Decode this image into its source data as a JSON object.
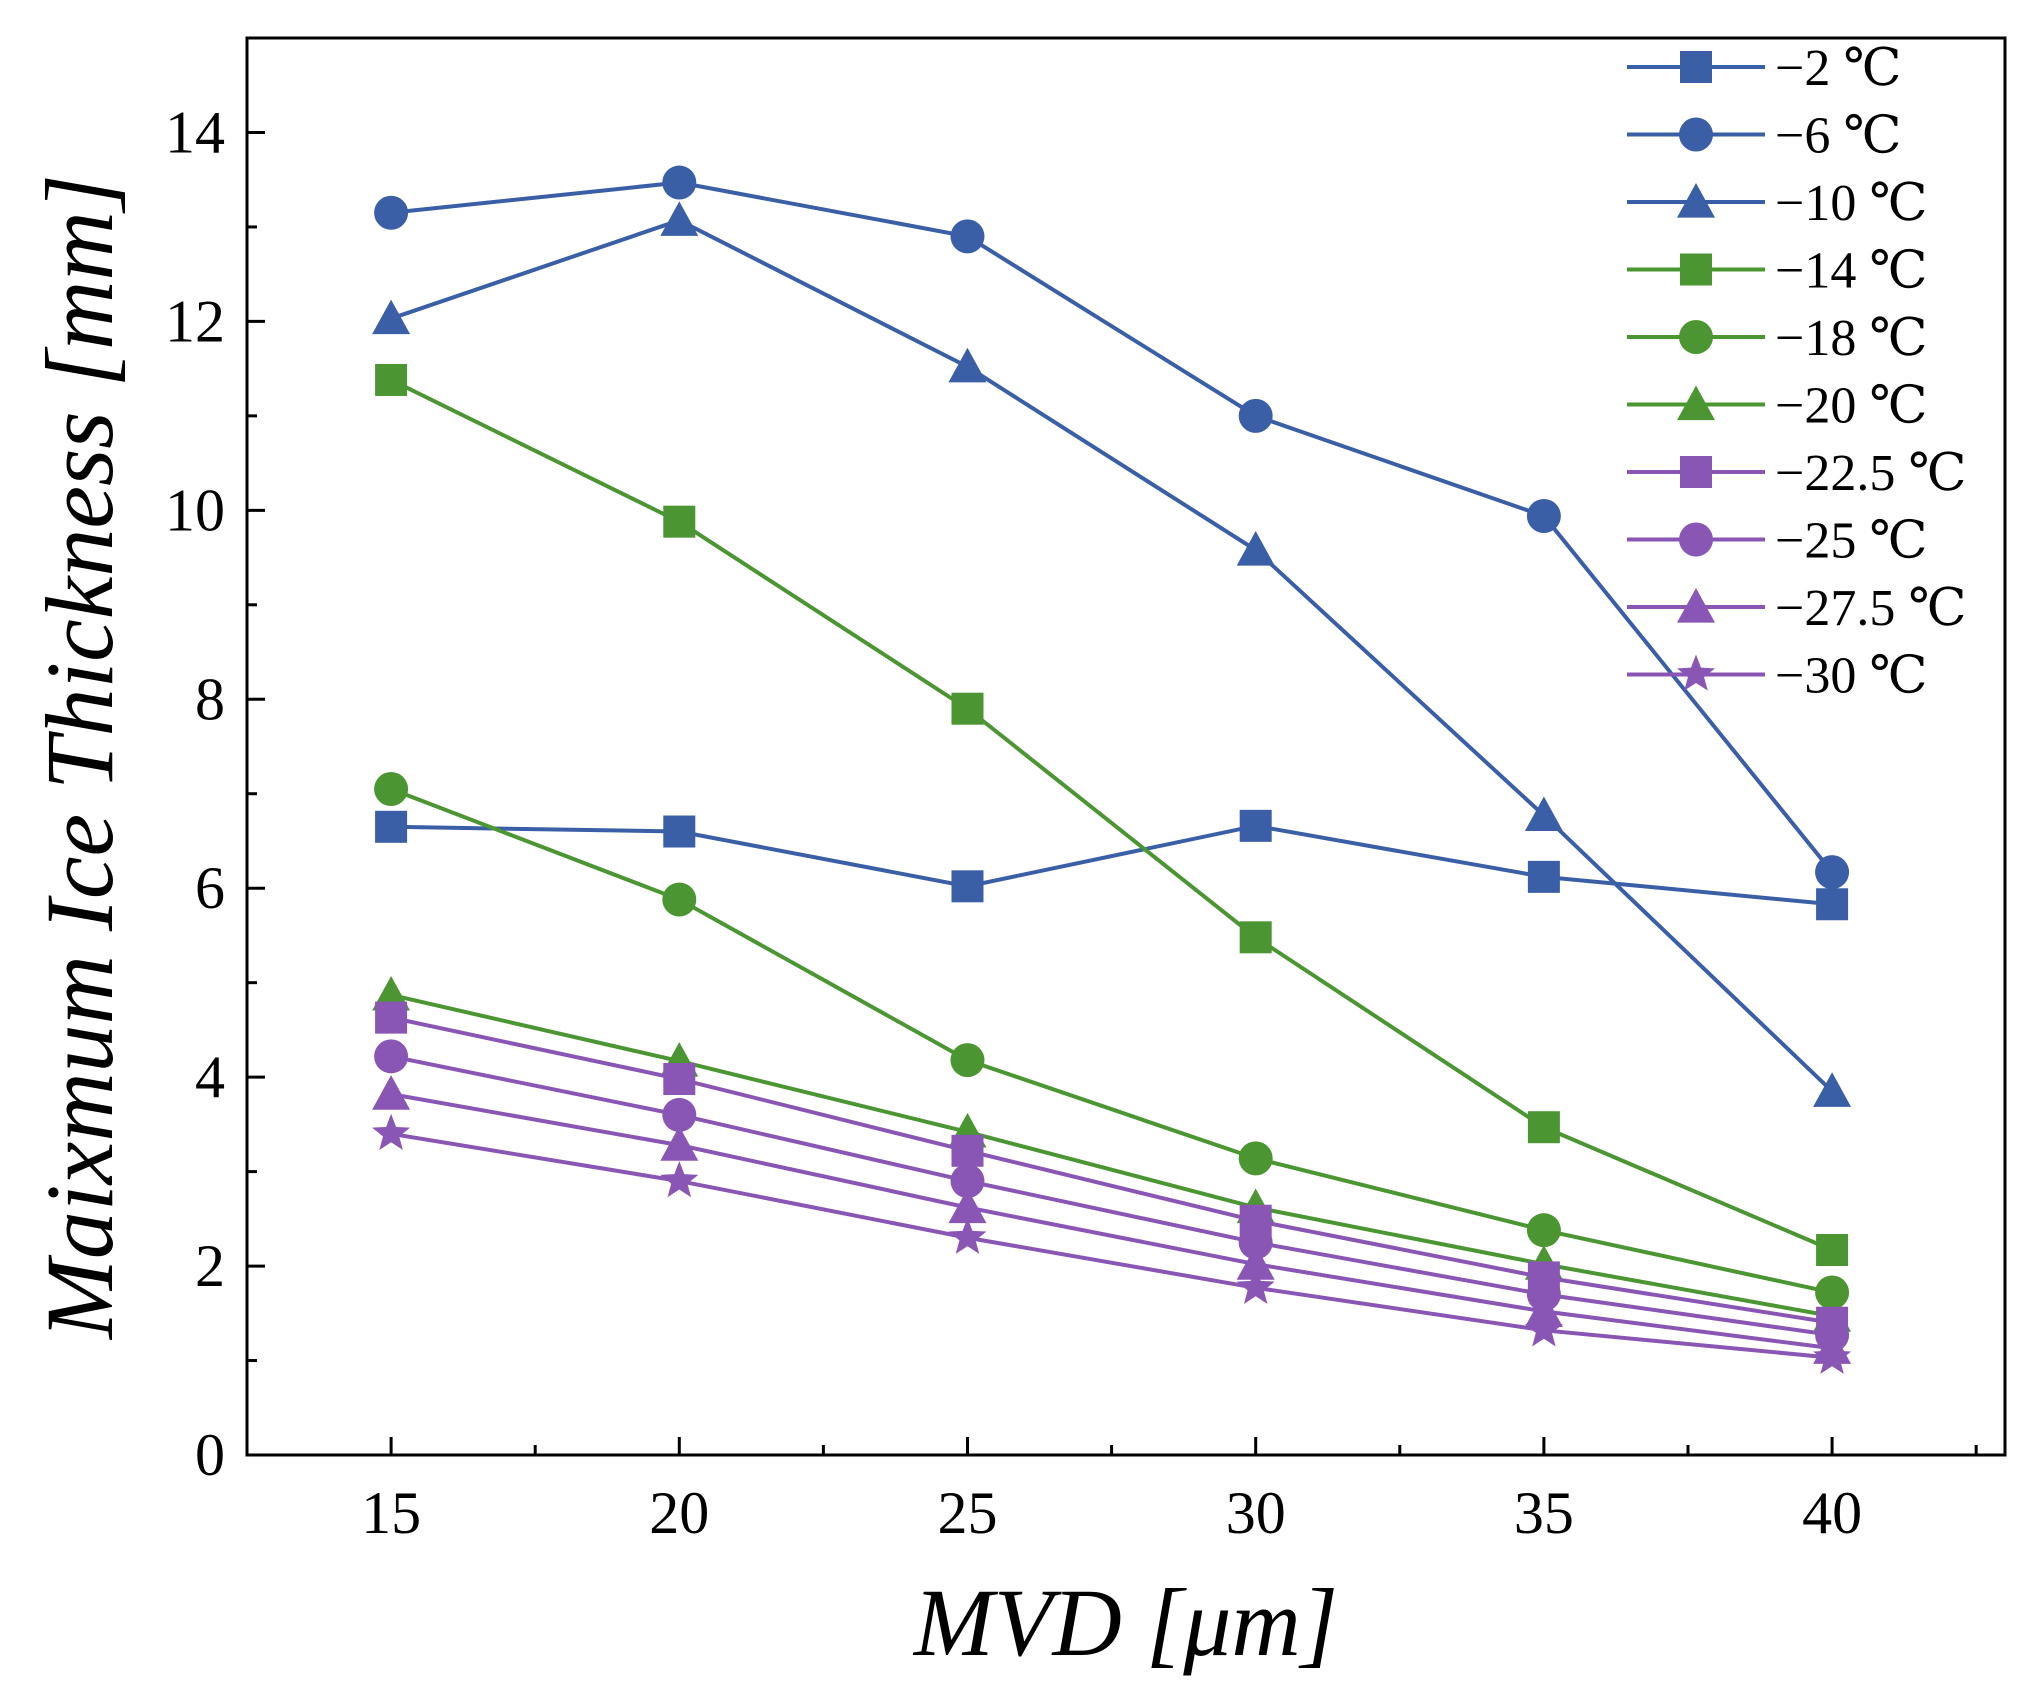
{
  "chart_data": {
    "type": "line",
    "xlabel": "MVD [μm]",
    "ylabel": "Maixmum Ice Thickness [mm]",
    "x": [
      15,
      20,
      25,
      30,
      35,
      40
    ],
    "x_ticks": [
      "15",
      "20",
      "25",
      "30",
      "35",
      "40"
    ],
    "y_ticks": [
      "0",
      "2",
      "4",
      "6",
      "8",
      "10",
      "12",
      "14"
    ],
    "xlim": [
      12.5,
      43
    ],
    "ylim": [
      0,
      15
    ],
    "grid": false,
    "legend_position": "top-right",
    "series": [
      {
        "name": "−2 ℃",
        "color": "#3a5fa6",
        "marker": "square",
        "values": [
          6.65,
          6.6,
          6.02,
          6.66,
          6.12,
          5.83
        ]
      },
      {
        "name": "−6 ℃",
        "color": "#3a5fa6",
        "marker": "circle",
        "values": [
          13.15,
          13.47,
          12.9,
          11.0,
          9.94,
          6.17
        ]
      },
      {
        "name": "−10 ℃",
        "color": "#3a5fa6",
        "marker": "triangle",
        "values": [
          12.03,
          13.07,
          11.52,
          9.58,
          6.77,
          3.85
        ]
      },
      {
        "name": "−14 ℃",
        "color": "#4b9632",
        "marker": "square",
        "values": [
          11.38,
          9.88,
          7.9,
          5.48,
          3.47,
          2.17
        ]
      },
      {
        "name": "−18 ℃",
        "color": "#4b9632",
        "marker": "circle",
        "values": [
          7.05,
          5.88,
          4.18,
          3.14,
          2.38,
          1.72
        ]
      },
      {
        "name": "−20 ℃",
        "color": "#4b9632",
        "marker": "triangle",
        "values": [
          4.87,
          4.17,
          3.42,
          2.62,
          2.02,
          1.47
        ]
      },
      {
        "name": "−22.5 ℃",
        "color": "#8a56b5",
        "marker": "square",
        "values": [
          4.63,
          3.98,
          3.22,
          2.48,
          1.88,
          1.4
        ]
      },
      {
        "name": "−25 ℃",
        "color": "#8a56b5",
        "marker": "circle",
        "values": [
          4.22,
          3.6,
          2.9,
          2.25,
          1.7,
          1.27
        ]
      },
      {
        "name": "−27.5 ℃",
        "color": "#8a56b5",
        "marker": "triangle",
        "values": [
          3.82,
          3.28,
          2.62,
          2.02,
          1.52,
          1.13
        ]
      },
      {
        "name": "−30 ℃",
        "color": "#8a56b5",
        "marker": "star",
        "values": [
          3.4,
          2.9,
          2.3,
          1.77,
          1.32,
          1.03
        ]
      }
    ]
  }
}
